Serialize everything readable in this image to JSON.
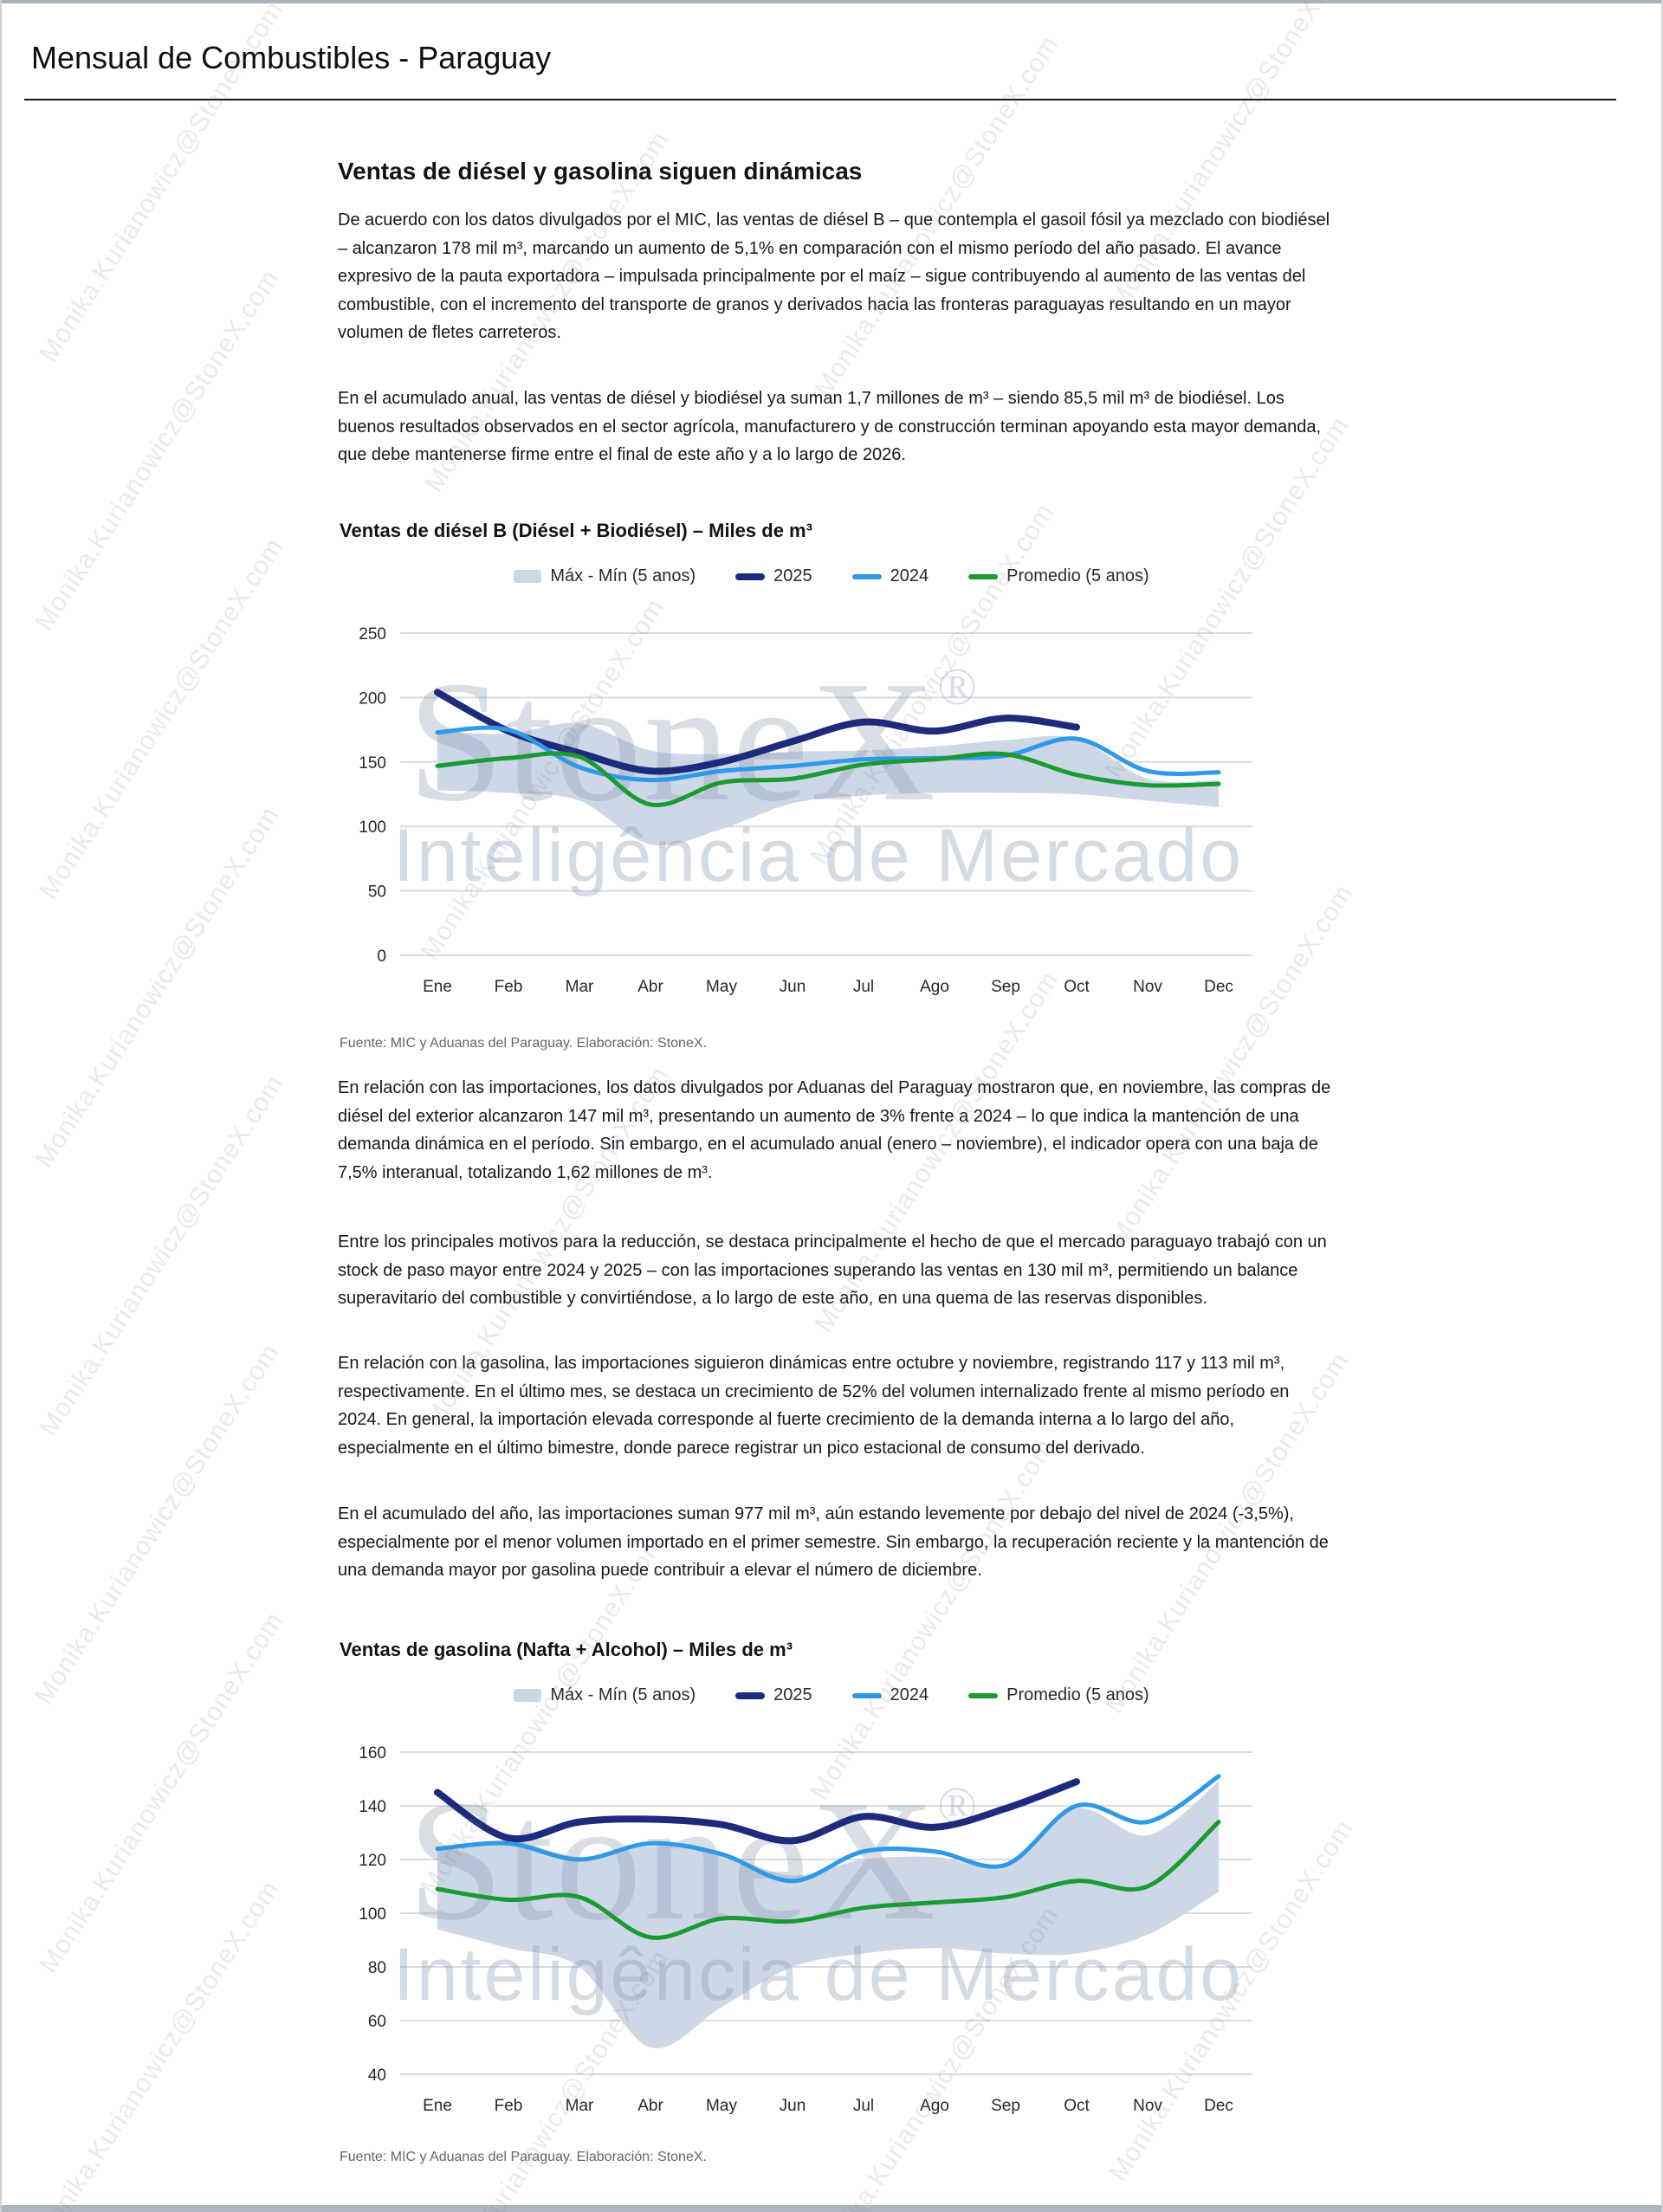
{
  "header": {
    "title": "Mensual de Combustibles - Paraguay"
  },
  "article": {
    "heading": "Ventas de diésel y gasolina siguen dinámicas",
    "paragraphs": [
      "De acuerdo con los datos divulgados por el MIC, las ventas de diésel B – que contempla el gasoil fósil ya mezclado con biodiésel – alcanzaron 178 mil m³, marcando un aumento de 5,1% en comparación con el mismo período del año pasado. El avance expresivo de la pauta exportadora – impulsada principalmente por el maíz – sigue contribuyendo al aumento de las ventas del combustible, con el incremento del transporte de granos y derivados hacia las fronteras paraguayas resultando en un mayor volumen de fletes carreteros.",
      "En el acumulado anual, las ventas de diésel y biodiésel ya suman 1,7 millones de m³ – siendo 85,5 mil m³ de biodiésel. Los buenos resultados observados en el sector agrícola, manufacturero y de construcción terminan apoyando esta mayor demanda, que debe mantenerse firme entre el final de este año y a lo largo de 2026.",
      "En relación con las importaciones, los datos divulgados por Aduanas del Paraguay mostraron que, en noviembre, las compras de diésel del exterior alcanzaron 147 mil m³, presentando un aumento de 3% frente a 2024 – lo que indica la mantención de una demanda dinámica en el período. Sin embargo, en el acumulado anual (enero – noviembre), el indicador opera con una baja de 7,5% interanual, totalizando 1,62 millones de m³.",
      "Entre los principales motivos para la reducción, se destaca principalmente el hecho de que el mercado paraguayo trabajó con un stock de paso mayor entre 2024 y 2025 – con las importaciones superando las ventas en 130 mil m³, permitiendo un balance superavitario del combustible y convirtiéndose, a lo largo de este año, en una quema de las reservas disponibles.",
      "En relación con la gasolina, las importaciones siguieron dinámicas entre octubre y noviembre, registrando 117 y 113 mil m³, respectivamente. En el último mes, se destaca un crecimiento de 52% del volumen internalizado frente al mismo período en 2024. En general, la importación elevada corresponde al fuerte crecimiento de la demanda interna a lo largo del año, especialmente en el último bimestre, donde parece registrar un pico estacional de consumo del derivado.",
      "En el acumulado del año, las importaciones suman 977 mil m³, aún estando levemente por debajo del nivel de 2024 (-3,5%), especialmente por el menor volumen importado en el primer semestre. Sin embargo, la recuperación reciente y la mantención de una demanda mayor por gasolina puede contribuir a elevar el número de diciembre."
    ]
  },
  "watermark": {
    "email": "Monika.Kurianowicz@StoneX.com",
    "brand": "StoneX",
    "registered": "®",
    "subtitle": "Inteligência de Mercado"
  },
  "colors": {
    "series_2025": "#1e2b7c",
    "series_2024": "#2f99e8",
    "series_promedio": "#1a9a32",
    "band_fill": "#cdd7e6",
    "grid": "#d9dbde"
  },
  "chart_data": [
    {
      "type": "line",
      "title": "Ventas de diésel B (Diésel + Biodiésel) – Miles de m³",
      "categories": [
        "Ene",
        "Feb",
        "Mar",
        "Abr",
        "May",
        "Jun",
        "Jul",
        "Ago",
        "Sep",
        "Oct",
        "Nov",
        "Dec"
      ],
      "ylim": [
        0,
        250
      ],
      "ytick_step": 50,
      "grid": true,
      "legend_position": "top",
      "band": {
        "label": "Máx - Mín (5 anos)",
        "max": [
          174,
          172,
          180,
          159,
          156,
          158,
          159,
          162,
          167,
          168,
          137,
          136
        ],
        "min": [
          128,
          126,
          120,
          86,
          98,
          118,
          124,
          126,
          126,
          125,
          120,
          115
        ]
      },
      "series": [
        {
          "name": "2025",
          "color": "#1e2b7c",
          "values": [
            204,
            174,
            157,
            143,
            150,
            166,
            181,
            174,
            184,
            177
          ]
        },
        {
          "name": "2024",
          "color": "#2f99e8",
          "values": [
            173,
            175,
            146,
            136,
            143,
            147,
            152,
            153,
            155,
            168,
            143,
            142
          ]
        },
        {
          "name": "Promedio (5 anos)",
          "color": "#1a9a32",
          "values": [
            147,
            153,
            154,
            117,
            134,
            137,
            148,
            152,
            156,
            140,
            132,
            133
          ]
        }
      ],
      "source": "Fuente: MIC y Aduanas del Paraguay. Elaboración: StoneX."
    },
    {
      "type": "line",
      "title": "Ventas de gasolina (Nafta + Alcohol) – Miles de m³",
      "categories": [
        "Ene",
        "Feb",
        "Mar",
        "Abr",
        "May",
        "Jun",
        "Jul",
        "Ago",
        "Sep",
        "Oct",
        "Nov",
        "Dec"
      ],
      "ylim": [
        40,
        160
      ],
      "ytick_step": 20,
      "grid": true,
      "legend_position": "top",
      "band": {
        "label": "Máx - Mín (5 anos)",
        "max": [
          124,
          127,
          121,
          125,
          122,
          114,
          120,
          121,
          118,
          139,
          129,
          149
        ],
        "min": [
          94,
          87,
          80,
          50,
          65,
          80,
          85,
          87,
          85,
          85,
          92,
          108
        ]
      },
      "series": [
        {
          "name": "2025",
          "color": "#1e2b7c",
          "values": [
            145,
            128,
            134,
            135,
            133,
            127,
            136,
            132,
            139,
            149
          ]
        },
        {
          "name": "2024",
          "color": "#2f99e8",
          "values": [
            124,
            126,
            120,
            126,
            122,
            112,
            123,
            123,
            118,
            140,
            134,
            151
          ]
        },
        {
          "name": "Promedio (5 anos)",
          "color": "#1a9a32",
          "values": [
            109,
            105,
            106,
            91,
            98,
            97,
            102,
            104,
            106,
            112,
            110,
            134
          ]
        }
      ],
      "source": "Fuente: MIC y Aduanas del Paraguay. Elaboración: StoneX."
    }
  ]
}
